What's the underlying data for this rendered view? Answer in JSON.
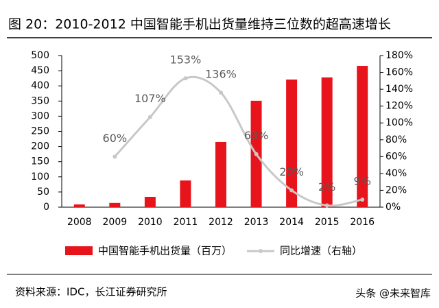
{
  "chart_data": {
    "type": "bar",
    "title": "图 20：2010-2012 中国智能手机出货量维持三位数的超高速增长",
    "categories": [
      "2008",
      "2009",
      "2010",
      "2011",
      "2012",
      "2013",
      "2014",
      "2015",
      "2016"
    ],
    "series": [
      {
        "name": "中国智能手机出货量（百万）",
        "type": "bar",
        "color": "#e8141b",
        "values": [
          9,
          14,
          34,
          88,
          215,
          351,
          421,
          428,
          466
        ]
      },
      {
        "name": "同比增速（右轴）",
        "type": "line",
        "axis": "y2",
        "color": "#c8c8c8",
        "values": [
          null,
          60,
          107,
          153,
          136,
          63,
          20,
          2,
          9
        ],
        "value_labels": [
          null,
          "60%",
          "107%",
          "153%",
          "136%",
          "63%",
          "20%",
          "2%",
          "9%"
        ]
      }
    ],
    "ylim": [
      0,
      500
    ],
    "yticks": [
      0,
      50,
      100,
      150,
      200,
      250,
      300,
      350,
      400,
      450,
      500
    ],
    "y2lim": [
      0,
      180
    ],
    "y2ticks": [
      {
        "value": 0,
        "label": "0%"
      },
      {
        "value": 20,
        "label": "20%"
      },
      {
        "value": 40,
        "label": "40%"
      },
      {
        "value": 60,
        "label": "60%"
      },
      {
        "value": 80,
        "label": "80%"
      },
      {
        "value": 100,
        "label": "100%"
      },
      {
        "value": 120,
        "label": "120%"
      },
      {
        "value": 140,
        "label": "140%"
      },
      {
        "value": 160,
        "label": "160%"
      },
      {
        "value": 180,
        "label": "180%"
      }
    ],
    "source": "资料来源：IDC，长江证券研究所",
    "watermark": "头条 @未来智库"
  }
}
